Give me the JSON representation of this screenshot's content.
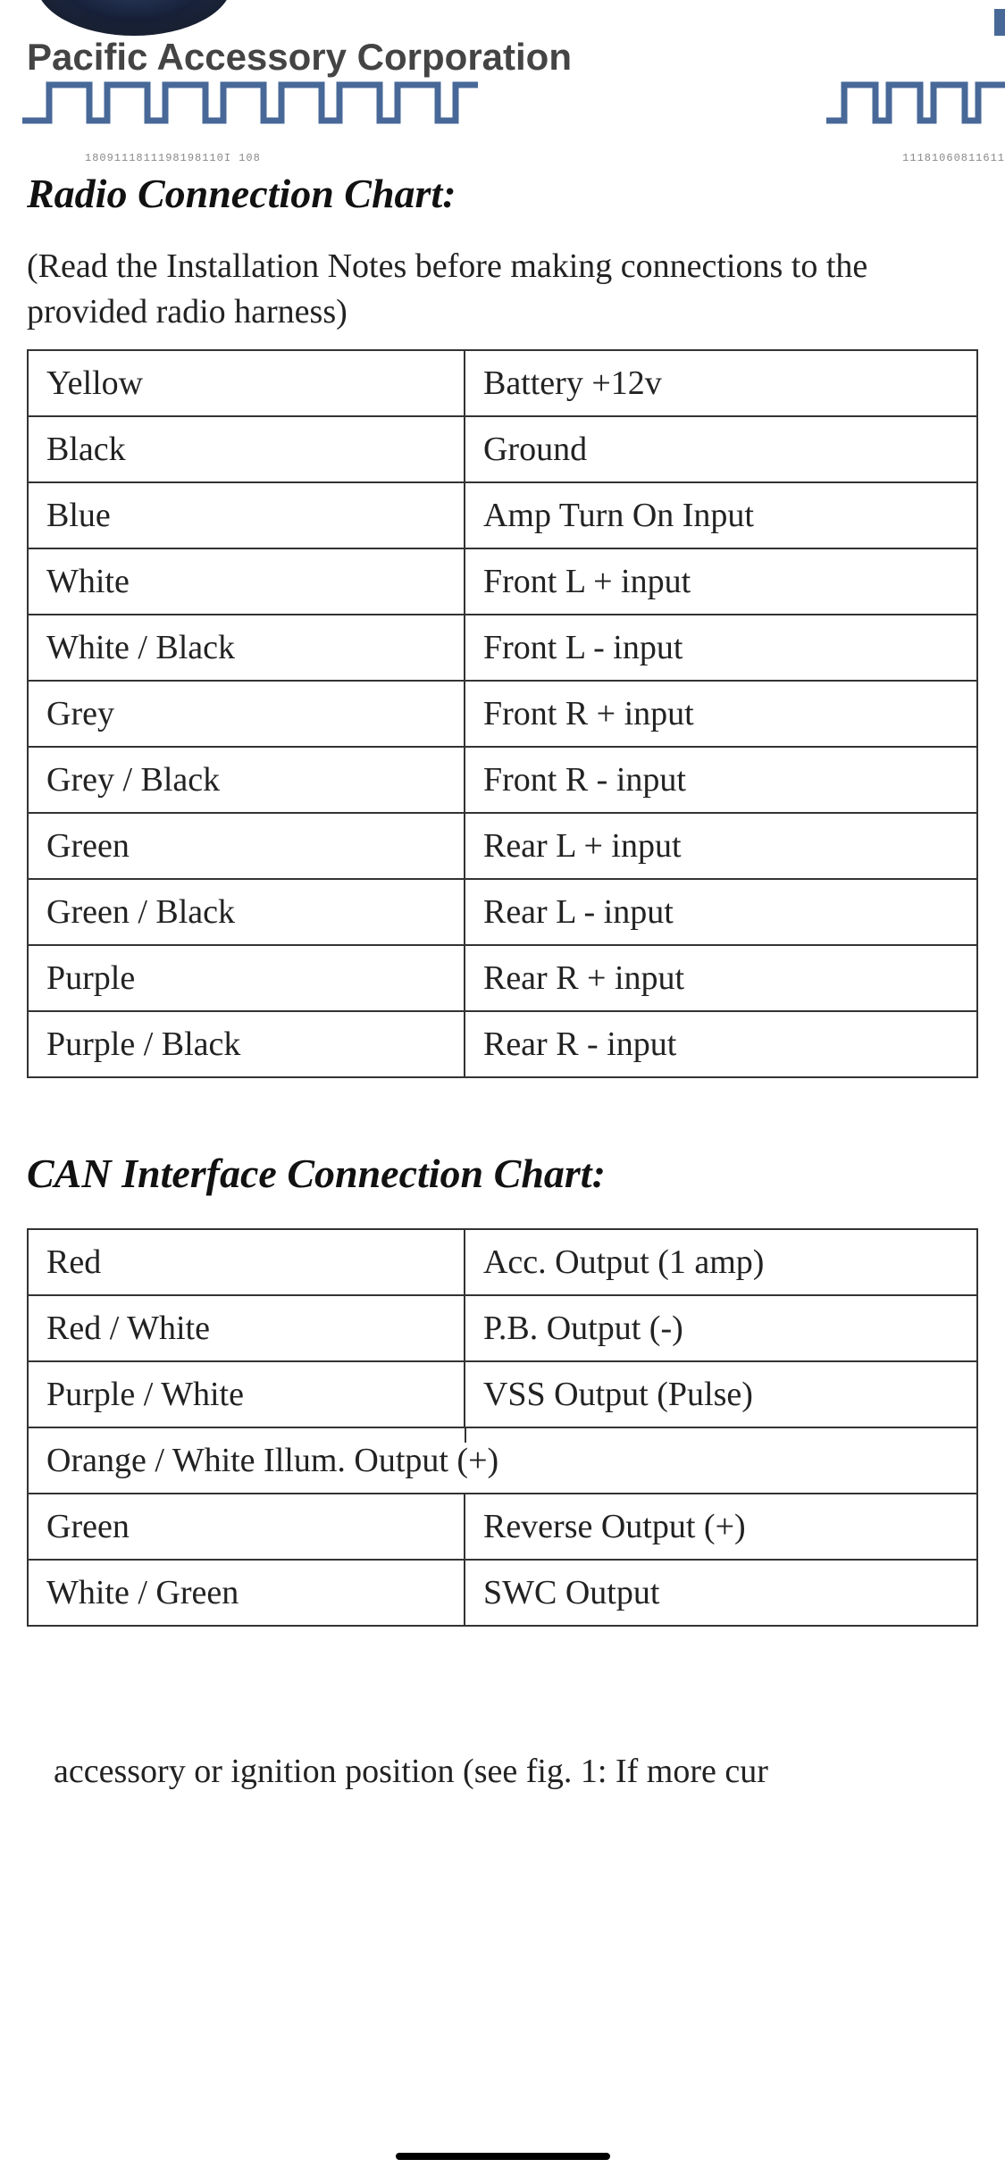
{
  "header": {
    "company_name": "Pacific Accessory Corporation",
    "binary_left": "1809111811198198110I 108",
    "binary_right": "11181060811611"
  },
  "section1": {
    "title": "Radio Connection Chart:",
    "subtitle": "(Read the Installation Notes before making connections to the provided radio harness)"
  },
  "radio_table": {
    "rows": [
      {
        "color": "Yellow",
        "function": "Battery +12v"
      },
      {
        "color": "Black",
        "function": "Ground"
      },
      {
        "color": "Blue",
        "function": "Amp Turn On Input"
      },
      {
        "color": "White",
        "function": "Front L + input"
      },
      {
        "color": "White / Black",
        "function": "Front L - input"
      },
      {
        "color": "Grey",
        "function": "Front R + input"
      },
      {
        "color": "Grey / Black",
        "function": "Front R - input"
      },
      {
        "color": "Green",
        "function": "Rear L + input"
      },
      {
        "color": "Green / Black",
        "function": "Rear L - input"
      },
      {
        "color": "Purple",
        "function": "Rear R + input"
      },
      {
        "color": "Purple / Black",
        "function": "Rear R - input"
      }
    ]
  },
  "section2": {
    "title": "CAN Interface Connection Chart:"
  },
  "can_table": {
    "rows": [
      {
        "color": "Red",
        "function": "Acc. Output (1 amp)",
        "merged": false
      },
      {
        "color": "Red / White",
        "function": "P.B. Output (-)",
        "merged": false
      },
      {
        "color": "Purple / White",
        "function": "VSS Output (Pulse)",
        "merged": false
      },
      {
        "color": "Orange / White Illum. Output (+)",
        "function": "",
        "merged": true
      },
      {
        "color": "Green",
        "function": "Reverse Output (+)",
        "merged": false
      },
      {
        "color": "White / Green",
        "function": "SWC Output",
        "merged": false
      }
    ]
  },
  "footer": {
    "text": "accessory or ignition position (see fig. 1: If more cur"
  },
  "styling": {
    "wave_color": "#486898",
    "border_color": "#333333",
    "text_color": "#222222",
    "title_color": "#111111",
    "company_color": "#444444",
    "background": "#ffffff",
    "font_title": "Times New Roman italic bold",
    "font_body": "Times New Roman",
    "font_company": "Arial bold",
    "title_fontsize": 46,
    "body_fontsize": 38,
    "cell_padding": "14px 20px",
    "col1_width_pct": 46,
    "col2_width_pct": 54
  }
}
